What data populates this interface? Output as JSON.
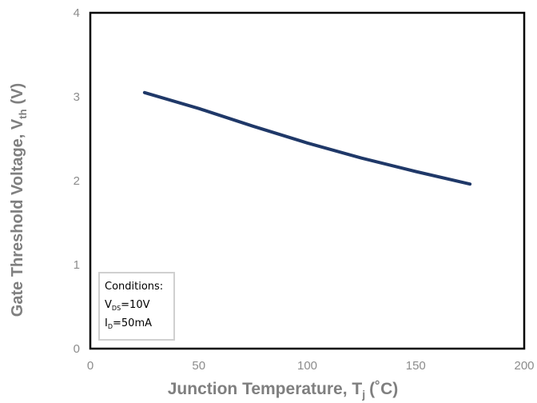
{
  "chart_data": {
    "type": "line",
    "title": "",
    "xlabel": {
      "main": "Junction Temperature, T",
      "sub": "j",
      "unit": "(˚C)"
    },
    "ylabel": {
      "main": "Gate Threshold Voltage, V",
      "sub": "th",
      "unit": "(V)"
    },
    "xlim": [
      0,
      200
    ],
    "ylim": [
      0,
      4
    ],
    "xticks": [
      "0",
      "50",
      "100",
      "150",
      "200"
    ],
    "yticks": [
      "0",
      "1",
      "2",
      "3",
      "4"
    ],
    "grid": false,
    "series": [
      {
        "x": [
          25,
          50,
          75,
          100,
          125,
          150,
          175
        ],
        "y": [
          3.05,
          2.86,
          2.65,
          2.45,
          2.27,
          2.11,
          1.96
        ]
      }
    ],
    "conditions": {
      "title": "Conditions:",
      "line1": {
        "sym": "V",
        "sub": "DS",
        "val": "=10V"
      },
      "line2": {
        "sym": "I",
        "sub": "D",
        "val": "=50mA"
      }
    },
    "colors": {
      "line": "#1f3868",
      "frame": "#000000",
      "tick_text": "#8c8c8c",
      "axis_label": "#7f7f7f"
    }
  }
}
